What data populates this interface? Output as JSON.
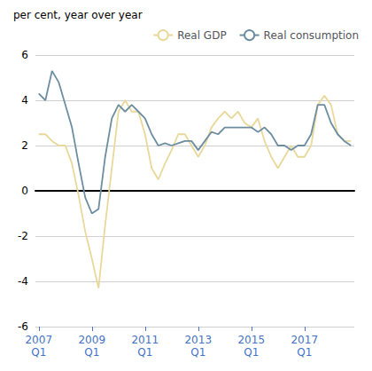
{
  "chart_data": {
    "type": "line",
    "title": "per cent, year over year",
    "categories": [
      "2007\nQ1",
      null,
      null,
      null,
      null,
      null,
      null,
      null,
      "2009\nQ1",
      null,
      null,
      null,
      null,
      null,
      null,
      null,
      "2011\nQ1",
      null,
      null,
      null,
      null,
      null,
      null,
      null,
      "2013\nQ1",
      null,
      null,
      null,
      null,
      null,
      null,
      null,
      "2015\nQ1",
      null,
      null,
      null,
      null,
      null,
      null,
      null,
      "2017\nQ1",
      null,
      null,
      null,
      null,
      null,
      null,
      null
    ],
    "series": [
      {
        "name": "Real GDP",
        "color": "#e8d89a",
        "values": [
          2.5,
          2.5,
          2.2,
          2.0,
          2.0,
          1.2,
          -0.2,
          -1.8,
          -3.0,
          -4.3,
          -1.5,
          1.0,
          3.5,
          4.0,
          3.5,
          3.5,
          2.5,
          1.0,
          0.5,
          1.2,
          1.8,
          2.5,
          2.5,
          2.0,
          1.5,
          2.0,
          2.8,
          3.2,
          3.5,
          3.2,
          3.5,
          3.0,
          2.8,
          3.2,
          2.2,
          1.5,
          1.0,
          1.5,
          2.0,
          1.5,
          1.5,
          2.0,
          3.8,
          4.2,
          3.8,
          2.5,
          2.2,
          2.2
        ]
      },
      {
        "name": "Real consumption",
        "color": "#6c8ea0",
        "values": [
          4.3,
          4.0,
          5.3,
          4.8,
          3.8,
          2.8,
          1.2,
          -0.3,
          -1.0,
          -0.8,
          1.5,
          3.2,
          3.8,
          3.5,
          3.8,
          3.5,
          3.2,
          2.5,
          2.0,
          2.1,
          2.0,
          2.1,
          2.2,
          2.2,
          1.8,
          2.2,
          2.6,
          2.5,
          2.8,
          2.8,
          2.8,
          2.8,
          2.8,
          2.6,
          2.8,
          2.5,
          2.0,
          2.0,
          1.8,
          2.0,
          2.0,
          2.5,
          3.8,
          3.8,
          3.0,
          2.5,
          2.2,
          2.0
        ]
      }
    ],
    "ylim": [
      -6,
      6
    ],
    "yticks": [
      -6,
      -4,
      -2,
      0,
      2,
      4,
      6
    ],
    "grid": true,
    "legend": "upper right"
  }
}
